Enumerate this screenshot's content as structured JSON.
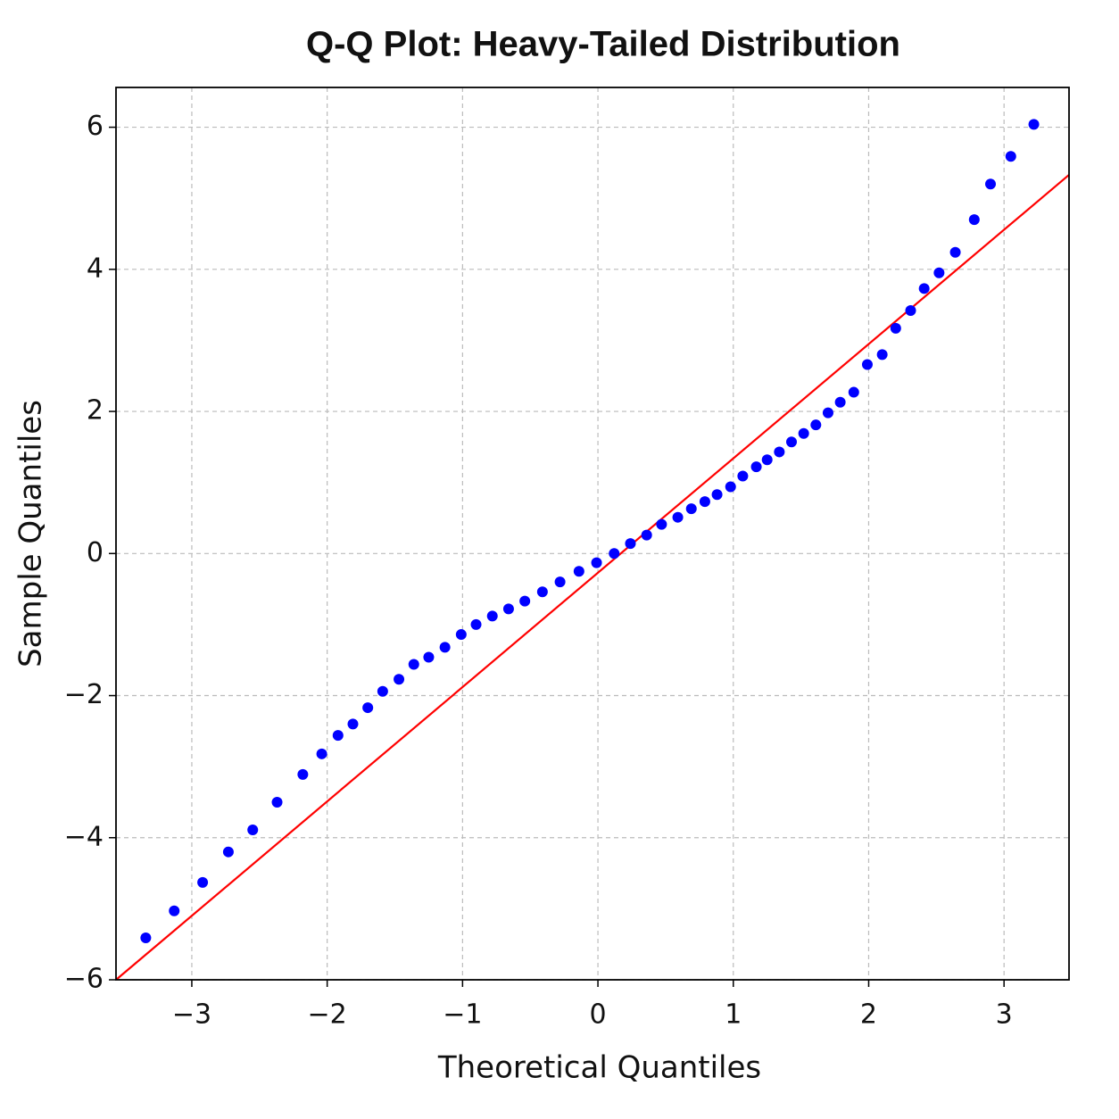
{
  "chart_data": {
    "type": "scatter",
    "title": "Q-Q Plot: Heavy-Tailed Distribution",
    "x_label": "Theoretical Quantiles",
    "y_label": "Sample Quantiles",
    "color": "#0000ff",
    "x": [
      -3.34,
      -3.13,
      -2.92,
      -2.73,
      -2.55,
      -2.37,
      -2.18,
      -2.04,
      -1.92,
      -1.81,
      -1.7,
      -1.59,
      -1.47,
      -1.36,
      -1.25,
      -1.13,
      -1.01,
      -0.9,
      -0.78,
      -0.66,
      -0.54,
      -0.41,
      -0.28,
      -0.14,
      -0.01,
      0.12,
      0.24,
      0.36,
      0.47,
      0.59,
      0.69,
      0.79,
      0.88,
      0.98,
      1.07,
      1.17,
      1.25,
      1.34,
      1.43,
      1.52,
      1.61,
      1.7,
      1.79,
      1.89,
      1.99,
      2.1,
      2.2,
      2.31,
      2.41,
      2.52,
      2.64,
      2.78,
      2.9,
      3.05,
      3.22
    ],
    "values": [
      -5.41,
      -5.03,
      -4.63,
      -4.2,
      -3.89,
      -3.5,
      -3.11,
      -2.82,
      -2.56,
      -2.4,
      -2.17,
      -1.94,
      -1.77,
      -1.56,
      -1.46,
      -1.32,
      -1.14,
      -1.0,
      -0.88,
      -0.78,
      -0.67,
      -0.54,
      -0.4,
      -0.25,
      -0.13,
      0,
      0.14,
      0.26,
      0.41,
      0.51,
      0.63,
      0.73,
      0.83,
      0.94,
      1.09,
      1.22,
      1.32,
      1.43,
      1.57,
      1.69,
      1.81,
      1.98,
      2.13,
      2.27,
      2.66,
      2.8,
      3.17,
      3.42,
      3.73,
      3.95,
      4.24,
      4.7,
      5.2,
      5.59,
      6.04
    ],
    "reference_line": {
      "color": "#ff0000",
      "x": [
        -3.56,
        3.48
      ],
      "y": [
        -6,
        5.33
      ]
    },
    "xlim": [
      -3.56,
      3.48
    ],
    "ylim": [
      -6,
      6.56
    ],
    "xticks": [
      {
        "value": -3,
        "label": "−3"
      },
      {
        "value": -2,
        "label": "−2"
      },
      {
        "value": -1,
        "label": "−1"
      },
      0,
      1,
      2,
      3
    ],
    "yticks": [
      {
        "value": -6,
        "label": "−6"
      },
      {
        "value": -4,
        "label": "−4"
      },
      {
        "value": -2,
        "label": "−2"
      },
      0,
      2,
      4,
      6
    ],
    "grid": true
  }
}
